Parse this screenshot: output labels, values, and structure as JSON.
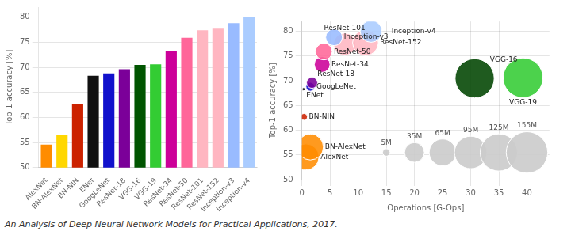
{
  "title": "An Analysis of Deep Neural Network Models for Practical Applications, 2017.",
  "chart_data": [
    {
      "type": "bar",
      "categories": [
        "AlexNet",
        "BN-AlexNet",
        "BN-NIN",
        "ENet",
        "GoogLeNet",
        "ResNet-18",
        "VGG-16",
        "VGG-19",
        "ResNet-34",
        "ResNet-50",
        "ResNet-101",
        "ResNet-152",
        "Inception-v3",
        "Inception-v4"
      ],
      "values": [
        54.6,
        56.6,
        62.7,
        68.3,
        68.8,
        69.6,
        70.5,
        70.6,
        73.3,
        75.9,
        77.4,
        77.7,
        78.8,
        80.0
      ],
      "colors": [
        "#FF8C00",
        "#FFD700",
        "#CC2200",
        "#111111",
        "#1111CC",
        "#7B0099",
        "#005500",
        "#33CC33",
        "#CC0099",
        "#FF6699",
        "#FFB6C1",
        "#FFB6C1",
        "#99BBFF",
        "#AACCFF"
      ],
      "ylabel": "Top-1 accuracy [%]",
      "ylim": [
        50,
        82
      ],
      "yticks": [
        50,
        55,
        60,
        65,
        70,
        75,
        80
      ],
      "grid": "y"
    },
    {
      "type": "bubble",
      "xlabel": "Operations [G-Ops]",
      "ylabel": "Top-1 accuracy [%]",
      "xlim": [
        0,
        44
      ],
      "ylim": [
        50,
        82
      ],
      "xticks": [
        0,
        5,
        10,
        15,
        20,
        25,
        30,
        35,
        40
      ],
      "yticks": [
        50,
        55,
        60,
        65,
        70,
        75,
        80
      ],
      "grid": true,
      "series": [
        {
          "x": [
            0.72,
            1.5,
            0.38,
            0.3,
            1.5,
            1.8,
            3.6,
            3.9,
            7.6,
            11.3,
            5.7,
            12.3,
            30.7,
            39.3
          ],
          "values": [
            54.6,
            56.6,
            62.7,
            68.3,
            68.8,
            69.6,
            73.3,
            75.9,
            77.4,
            77.7,
            78.8,
            80.0,
            70.5,
            70.6
          ],
          "sizes": [
            61,
            61,
            4,
            0.4,
            7,
            11,
            22,
            25,
            45,
            60,
            25,
            43,
            138,
            143
          ],
          "colors": [
            "#FF8C00",
            "#FF8C00",
            "#CC2200",
            "#111111",
            "#1111CC",
            "#7B0099",
            "#CC0099",
            "#FF6699",
            "#FFB6C1",
            "#FFB6C1",
            "#99BBFF",
            "#AACCFF",
            "#004400",
            "#33CC33"
          ],
          "labels": [
            "AlexNet",
            "BN-AlexNet",
            "BN-NIN",
            "ENet",
            "GoogLeNet",
            "ResNet-18",
            "ResNet-34",
            "ResNet-50",
            "ResNet-101",
            "ResNet-152",
            "Inception-v3",
            "Inception-v4",
            "VGG-16",
            "VGG-19"
          ]
        },
        {
          "x": [
            15,
            20,
            25,
            30,
            35,
            40
          ],
          "values": [
            55.5,
            55.5,
            55.5,
            55.5,
            55.5,
            55.5
          ],
          "sizes": [
            5,
            35,
            65,
            95,
            125,
            155
          ],
          "size_labels": [
            "5M",
            "35M",
            "65M",
            "95M",
            "125M",
            "155M"
          ],
          "color": "#cccccc"
        }
      ]
    }
  ]
}
